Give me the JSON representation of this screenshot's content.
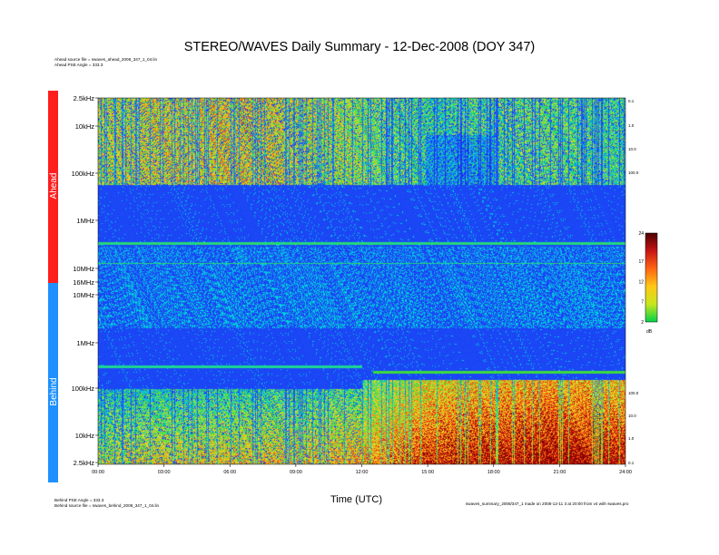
{
  "title": "STEREO/WAVES Daily Summary - 12-Dec-2008 (DOY 347)",
  "header_info": {
    "ahead_source": "Ahead source file = swaves_ahead_2008_347_1_04.lin",
    "ahead_pse": "Ahead PSE Angle = 333.3"
  },
  "footer_info": {
    "behind_pse": "Behind PSE Angle = 333.3",
    "behind_source": "Behind source file = swaves_behind_2008_347_1_04.lin",
    "program_note": "swaves_summary_2008/347_1 made on 2008-12-11 3 at 20:00 from v4 with swaves.pro"
  },
  "colors": {
    "ahead_bar": "#ff1e1e",
    "behind_bar": "#1e90ff",
    "background_blue": "#1a2cf0"
  },
  "chart_data": {
    "type": "heatmap",
    "title": "STEREO/WAVES Daily Summary - 12-Dec-2008 (DOY 347)",
    "xlabel": "Time (UTC)",
    "x_ticks": [
      "00:00",
      "03:00",
      "06:00",
      "09:00",
      "12:00",
      "15:00",
      "18:00",
      "21:00",
      "24:00"
    ],
    "panels": [
      {
        "name": "Ahead",
        "y_ticks": [
          "2.5kHz",
          "10kHz",
          "100kHz",
          "1MHz",
          "10MHz",
          "16MHz"
        ],
        "right_ticks": [
          "0.1",
          "1.0",
          "10.0",
          "100.0"
        ],
        "description_of_structure": "Broadband emission (green/yellow/red) below ~100 kHz, quiet blue above 300 kHz with narrow interference lines"
      },
      {
        "name": "Behind",
        "y_ticks": [
          "16MHz",
          "10MHz",
          "1MHz",
          "100kHz",
          "10kHz",
          "2.5kHz"
        ],
        "right_ticks": [
          "100.0",
          "10.0",
          "1.0",
          "0.1"
        ],
        "description_of_structure": "Quiet blue above ~300 kHz; strong emission below 100 kHz increasing after 12:00"
      }
    ],
    "colorbar": {
      "ticks": [
        "24",
        "17",
        "12",
        "7",
        "2"
      ],
      "unit": "dB",
      "range": [
        2,
        24
      ]
    },
    "activity": {
      "ahead_low_freq_intensity": [
        0.65,
        0.7,
        0.72,
        0.68,
        0.6,
        0.5,
        0.55,
        0.55,
        0.5
      ],
      "behind_low_freq_intensity": [
        0.55,
        0.58,
        0.6,
        0.62,
        0.65,
        0.8,
        0.85,
        0.88,
        0.85
      ]
    }
  }
}
